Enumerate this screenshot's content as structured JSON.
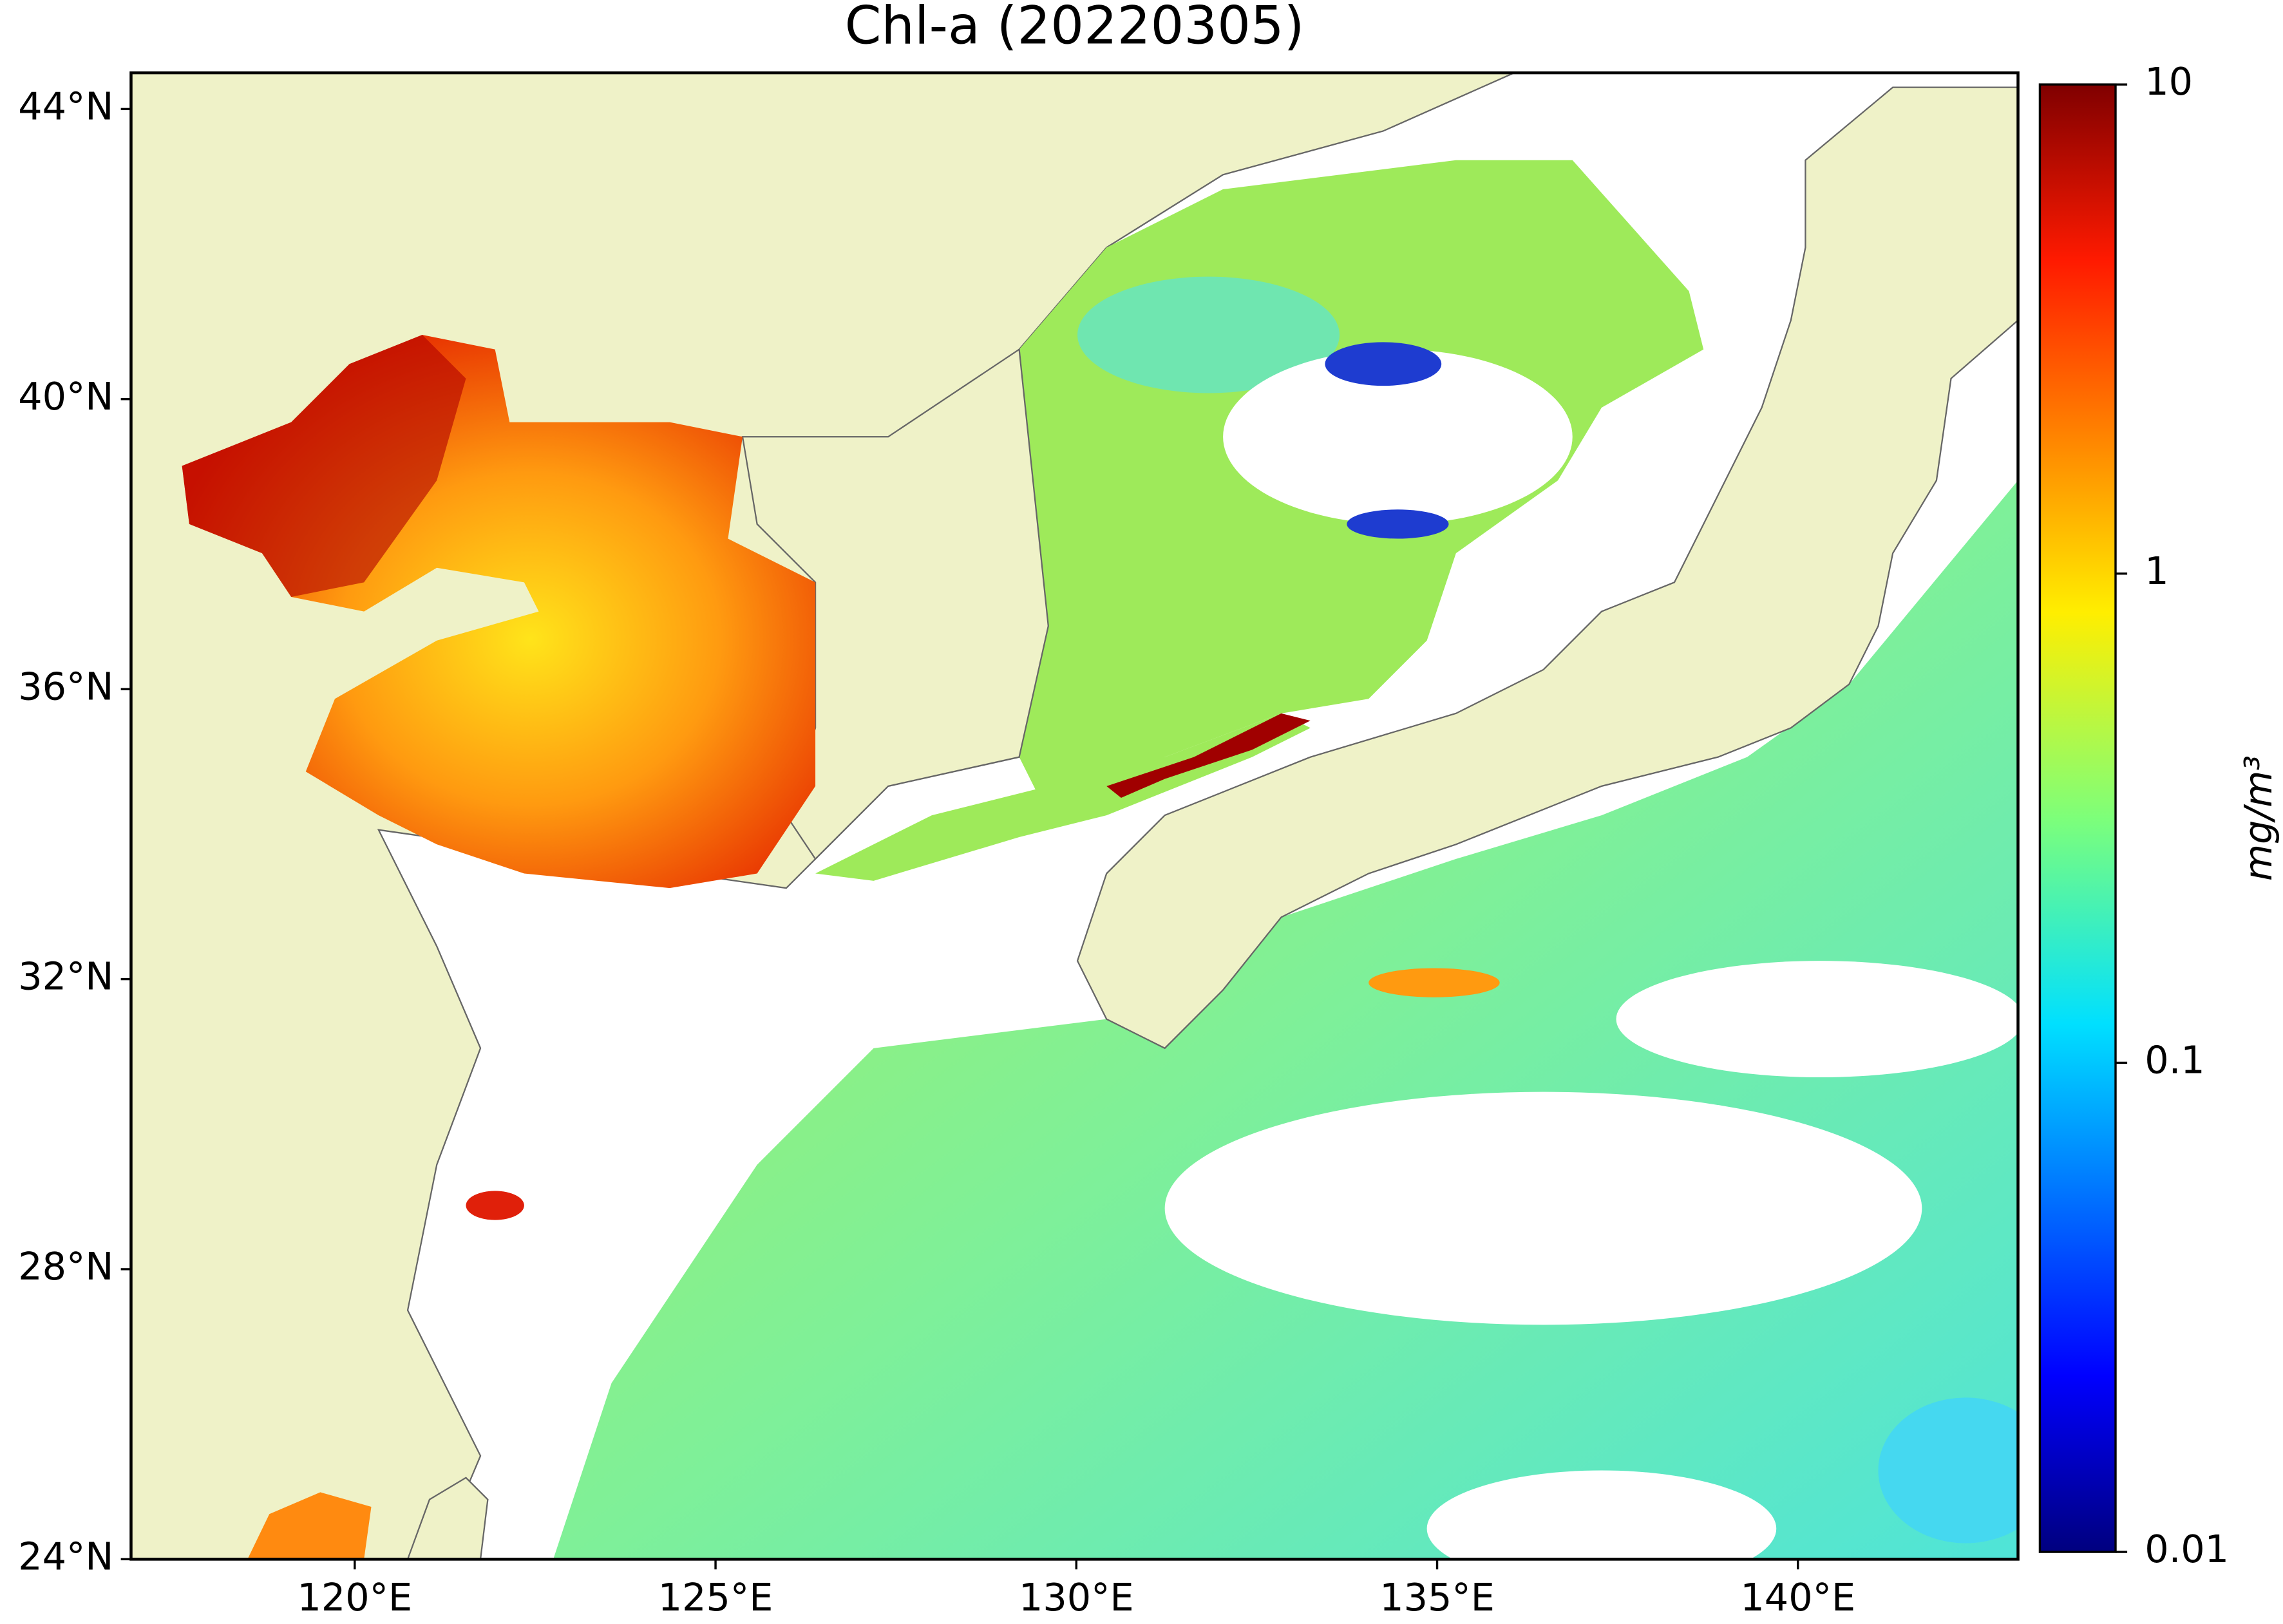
{
  "title": "Chl-a (20220305)",
  "map": {
    "xlim": [
      116.9,
      143.05
    ],
    "ylim": [
      24,
      44.5
    ],
    "xticks": [
      {
        "value": 120,
        "label": "120°E"
      },
      {
        "value": 125,
        "label": "125°E"
      },
      {
        "value": 130,
        "label": "130°E"
      },
      {
        "value": 135,
        "label": "135°E"
      },
      {
        "value": 140,
        "label": "140°E"
      }
    ],
    "yticks": [
      {
        "value": 24,
        "label": "24°N"
      },
      {
        "value": 28,
        "label": "28°N"
      },
      {
        "value": 32,
        "label": "32°N"
      },
      {
        "value": 36,
        "label": "36°N"
      },
      {
        "value": 40,
        "label": "40°N"
      },
      {
        "value": 44,
        "label": "44°N"
      }
    ]
  },
  "colorbar": {
    "label": "mg/m³",
    "scale": "log",
    "lim": [
      0.01,
      10
    ],
    "ticks": [
      0.01,
      0.1,
      1,
      10
    ]
  }
}
